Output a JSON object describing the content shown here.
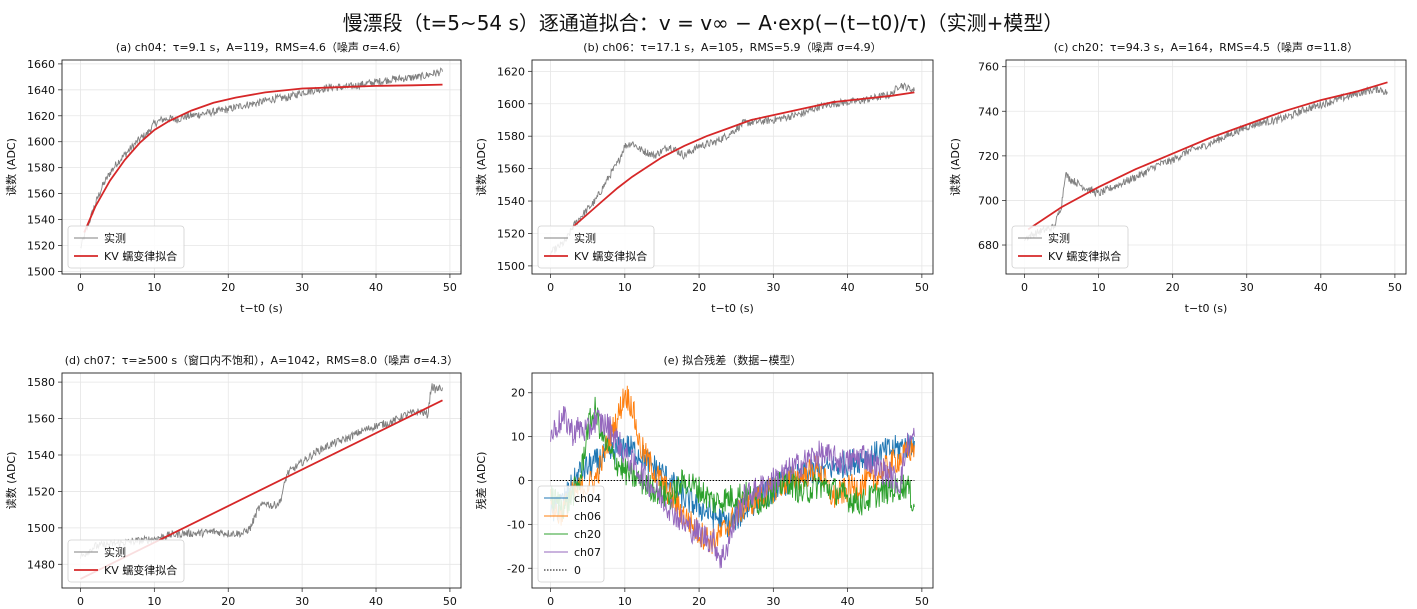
{
  "suptitle": "慢漂段（t=5~54 s）逐通道拟合：v = v∞ − A·exp(−(t−t0)/τ)（实测+模型）",
  "colors": {
    "measured": "#808080",
    "model": "#d62728",
    "ch04": "#1f77b4",
    "ch06": "#ff7f0e",
    "ch20": "#2ca02c",
    "ch07": "#9467bd",
    "zero": "#000000"
  },
  "chart_data": [
    {
      "id": "a",
      "type": "line",
      "title": "(a) ch04：τ=9.1 s，A=119，RMS=4.6（噪声 σ=4.6）",
      "xlabel": "t−t0 (s)",
      "ylabel": "读数 (ADC)",
      "xlim": [
        -2.5,
        51.5
      ],
      "ylim": [
        1498,
        1663
      ],
      "xticks": [
        "0",
        "10",
        "20",
        "30",
        "40",
        "50"
      ],
      "yticks": [
        "1500",
        "1520",
        "1540",
        "1560",
        "1580",
        "1600",
        "1620",
        "1640",
        "1660"
      ],
      "grid": true,
      "legend_loc": "lower-left",
      "legend": [
        "实测",
        "KV 蠕变律拟合"
      ],
      "series": [
        {
          "name": "实测",
          "kind": "measured",
          "x": [
            0,
            1,
            2,
            3,
            4,
            5,
            6,
            7,
            8,
            9,
            10,
            11,
            12,
            13,
            14,
            15,
            16,
            18,
            20,
            22,
            24,
            26,
            28,
            30,
            32,
            34,
            36,
            38,
            40,
            42,
            44,
            46,
            48,
            49
          ],
          "y": [
            1518,
            1535,
            1552,
            1566,
            1576,
            1584,
            1590,
            1596,
            1602,
            1606,
            1614,
            1617,
            1618,
            1617,
            1619,
            1620,
            1621,
            1623,
            1625,
            1628,
            1630,
            1633,
            1634,
            1638,
            1640,
            1642,
            1642,
            1644,
            1646,
            1648,
            1649,
            1650,
            1653,
            1654
          ]
        },
        {
          "name": "KV 蠕变律拟合",
          "kind": "model",
          "x": [
            0.5,
            2,
            4,
            6,
            8,
            10,
            12,
            15,
            18,
            21,
            25,
            30,
            35,
            40,
            45,
            49
          ],
          "y": [
            1530,
            1550,
            1570,
            1586,
            1599,
            1609,
            1616,
            1624,
            1630,
            1634,
            1638,
            1641,
            1642,
            1643,
            1643.5,
            1644
          ]
        }
      ]
    },
    {
      "id": "b",
      "type": "line",
      "title": "(b) ch06：τ=17.1 s，A=105，RMS=5.9（噪声 σ=4.9）",
      "xlabel": "t−t0 (s)",
      "ylabel": "读数 (ADC)",
      "xlim": [
        -2.5,
        51.5
      ],
      "ylim": [
        1495,
        1627
      ],
      "xticks": [
        "0",
        "10",
        "20",
        "30",
        "40",
        "50"
      ],
      "yticks": [
        "1500",
        "1520",
        "1540",
        "1560",
        "1580",
        "1600",
        "1620"
      ],
      "grid": true,
      "legend_loc": "lower-left",
      "legend": [
        "实测",
        "KV 蠕变律拟合"
      ],
      "series": [
        {
          "name": "实测",
          "kind": "measured",
          "x": [
            0,
            2,
            3,
            4,
            5,
            6,
            7,
            8,
            9,
            10,
            11,
            12,
            13,
            14,
            15,
            16,
            18,
            20,
            22,
            24,
            26,
            28,
            30,
            32,
            34,
            36,
            38,
            40,
            42,
            44,
            46,
            47,
            48,
            49
          ],
          "y": [
            1508,
            1515,
            1524,
            1530,
            1535,
            1540,
            1548,
            1556,
            1563,
            1574,
            1576,
            1572,
            1570,
            1568,
            1571,
            1574,
            1568,
            1574,
            1576,
            1581,
            1588,
            1589,
            1590,
            1592,
            1594,
            1598,
            1600,
            1601,
            1602,
            1604,
            1606,
            1612,
            1610,
            1608
          ]
        },
        {
          "name": "KV 蠕变律拟合",
          "kind": "model",
          "x": [
            3,
            5,
            7,
            9,
            11,
            13,
            15,
            18,
            21,
            24,
            27,
            30,
            34,
            38,
            42,
            46,
            49
          ],
          "y": [
            1524,
            1532,
            1540,
            1548,
            1555,
            1561,
            1567,
            1574,
            1580,
            1585,
            1590,
            1593,
            1597,
            1601,
            1603,
            1605,
            1607
          ]
        }
      ]
    },
    {
      "id": "c",
      "type": "line",
      "title": "(c) ch20：τ=94.3 s，A=164，RMS=4.5（噪声 σ=11.8）",
      "xlabel": "t−t0 (s)",
      "ylabel": "读数 (ADC)",
      "xlim": [
        -2.5,
        51.5
      ],
      "ylim": [
        667,
        763
      ],
      "xticks": [
        "0",
        "10",
        "20",
        "30",
        "40",
        "50"
      ],
      "yticks": [
        "680",
        "700",
        "720",
        "740",
        "760"
      ],
      "grid": true,
      "legend_loc": "lower-left",
      "legend": [
        "实测",
        "KV 蠕变律拟合"
      ],
      "series": [
        {
          "name": "实测",
          "kind": "measured",
          "x": [
            0,
            2,
            4,
            5,
            5.5,
            6,
            8,
            10,
            12,
            14,
            16,
            18,
            20,
            22,
            24,
            26,
            28,
            30,
            32,
            34,
            36,
            38,
            40,
            42,
            44,
            46,
            48,
            49
          ],
          "y": [
            683,
            686,
            688,
            698,
            712,
            710,
            706,
            703,
            706,
            709,
            712,
            716,
            718,
            722,
            724,
            727,
            730,
            733,
            735,
            736,
            738,
            741,
            743,
            745,
            747,
            749,
            750,
            748
          ]
        },
        {
          "name": "KV 蠕变律拟合",
          "kind": "model",
          "x": [
            0.5,
            5,
            10,
            15,
            20,
            25,
            30,
            35,
            40,
            45,
            49
          ],
          "y": [
            687,
            697,
            706,
            714,
            721,
            728,
            734,
            740,
            745,
            749,
            753
          ]
        }
      ]
    },
    {
      "id": "d",
      "type": "line",
      "title": "(d) ch07：τ=≥500 s（窗口内不饱和），A=1042，RMS=8.0（噪声 σ=4.3）",
      "xlabel": "",
      "ylabel": "读数 (ADC)",
      "xlim": [
        -2.5,
        51.5
      ],
      "ylim": [
        1467,
        1585
      ],
      "xticks": [
        "0",
        "10",
        "20",
        "30",
        "40",
        "50"
      ],
      "yticks": [
        "1480",
        "1500",
        "1520",
        "1540",
        "1560",
        "1580"
      ],
      "grid": true,
      "legend_loc": "lower-left",
      "legend": [
        "实测",
        "KV 蠕变律拟合"
      ],
      "series": [
        {
          "name": "实测",
          "kind": "measured",
          "x": [
            0,
            2,
            4,
            6,
            8,
            10,
            12,
            14,
            16,
            18,
            20,
            22,
            23,
            24,
            25,
            26,
            27,
            28,
            30,
            32,
            34,
            36,
            38,
            40,
            42,
            44,
            46,
            47,
            47.5,
            48,
            49
          ],
          "y": [
            1484,
            1490,
            1491,
            1492,
            1493,
            1494,
            1496,
            1497,
            1497,
            1498,
            1497,
            1497,
            1500,
            1510,
            1514,
            1512,
            1514,
            1530,
            1536,
            1542,
            1546,
            1549,
            1553,
            1556,
            1558,
            1562,
            1564,
            1562,
            1578,
            1576,
            1577
          ]
        },
        {
          "name": "KV 蠕变律拟合",
          "kind": "model",
          "x": [
            0,
            49
          ],
          "y": [
            1472,
            1570
          ]
        }
      ]
    },
    {
      "id": "e",
      "type": "line",
      "title": "(e) 拟合残差（数据−模型）",
      "xlabel": "",
      "ylabel": "残差 (ADC)",
      "xlim": [
        -2.5,
        51.5
      ],
      "ylim": [
        -24.5,
        24.5
      ],
      "xticks": [
        "0",
        "10",
        "20",
        "30",
        "40",
        "50"
      ],
      "yticks": [
        "-20",
        "-10",
        "0",
        "10",
        "20"
      ],
      "grid": true,
      "legend_loc": "lower-left",
      "legend": [
        "ch04",
        "ch06",
        "ch20",
        "ch07",
        "0"
      ],
      "series": [
        {
          "name": "ch04",
          "kind": "ch04",
          "x": [
            0,
            2,
            4,
            6,
            8,
            10,
            12,
            14,
            16,
            18,
            20,
            22,
            24,
            26,
            28,
            30,
            32,
            34,
            36,
            38,
            40,
            42,
            44,
            46,
            48,
            49
          ],
          "y": [
            -8,
            -4,
            2,
            4,
            6,
            8,
            6,
            3,
            0,
            -4,
            -6,
            -8,
            -10,
            -7,
            -4,
            -2,
            0,
            1,
            2,
            3,
            4,
            5,
            6,
            7,
            8,
            9
          ]
        },
        {
          "name": "ch06",
          "kind": "ch06",
          "x": [
            0,
            1,
            2,
            3,
            4,
            5,
            6,
            7,
            8,
            9,
            10,
            11,
            12,
            14,
            16,
            18,
            20,
            22,
            24,
            26,
            28,
            30,
            32,
            34,
            36,
            38,
            40,
            42,
            44,
            46,
            48,
            49
          ],
          "y": [
            -5,
            -8,
            -6,
            -3,
            -2,
            -1,
            0,
            5,
            10,
            14,
            20,
            17,
            8,
            2,
            -3,
            -8,
            -12,
            -14,
            -10,
            -6,
            -4,
            -2,
            0,
            1,
            3,
            -4,
            -2,
            -1,
            1,
            4,
            6,
            8
          ]
        },
        {
          "name": "ch20",
          "kind": "ch20",
          "x": [
            0,
            2,
            4,
            5,
            6,
            7,
            8,
            10,
            12,
            14,
            16,
            18,
            20,
            22,
            24,
            26,
            28,
            30,
            32,
            34,
            36,
            38,
            40,
            42,
            44,
            46,
            48,
            49
          ],
          "y": [
            -4,
            -6,
            0,
            12,
            16,
            10,
            6,
            2,
            0,
            -2,
            -4,
            0,
            -2,
            -5,
            -4,
            -3,
            -5,
            -2,
            0,
            -3,
            -1,
            -2,
            -4,
            -5,
            -3,
            -2,
            -1,
            -6
          ]
        },
        {
          "name": "ch07",
          "kind": "ch07",
          "x": [
            0,
            1,
            2,
            3,
            4,
            5,
            6,
            8,
            10,
            12,
            14,
            16,
            18,
            20,
            22,
            23,
            24,
            25,
            26,
            28,
            30,
            32,
            34,
            36,
            38,
            40,
            42,
            44,
            46,
            47,
            48,
            49
          ],
          "y": [
            10,
            13,
            14,
            11,
            12,
            11,
            14,
            12,
            6,
            2,
            -2,
            -6,
            -10,
            -12,
            -14,
            -18,
            -14,
            -8,
            -4,
            -2,
            0,
            2,
            4,
            6,
            5,
            4,
            6,
            3,
            1,
            -1,
            8,
            10
          ]
        },
        {
          "name": "0",
          "kind": "zero",
          "x": [
            0,
            49
          ],
          "y": [
            0,
            0
          ]
        }
      ]
    }
  ]
}
